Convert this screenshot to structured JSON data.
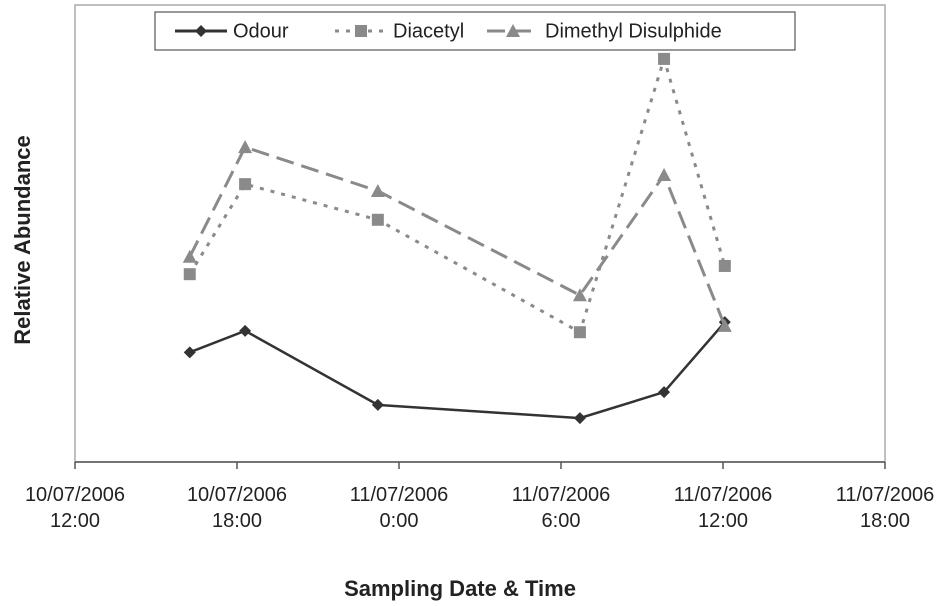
{
  "chart_data": {
    "type": "line",
    "x_label": "Sampling Date & Time",
    "y_label": "Relative Abundance",
    "x": [
      "2006-07-10T16:15",
      "2006-07-10T18:18",
      "2006-07-10T23:13",
      "2006-07-11T06:42",
      "2006-07-11T09:49",
      "2006-07-11T12:04"
    ],
    "series": [
      {
        "name": "Odour",
        "color": "#333333",
        "line_style": "solid",
        "marker": "diamond",
        "values": [
          24,
          28.7,
          12.5,
          9.6,
          15.3,
          30.6
        ]
      },
      {
        "name": "Diacetyl",
        "color": "#8a8a8a",
        "line_style": "dotted",
        "marker": "square",
        "values": [
          41.1,
          60.8,
          53,
          28.4,
          88.2,
          42.9
        ]
      },
      {
        "name": "Dimethyl Disulphide",
        "color": "#8a8a8a",
        "line_style": "dashed",
        "marker": "triangle",
        "values": [
          44.9,
          68.9,
          59.3,
          36.5,
          62.8,
          29.8
        ]
      }
    ],
    "xlim": [
      "2006-07-10T12:00",
      "2006-07-11T18:00"
    ],
    "xticks": [
      {
        "value": "2006-07-10T12:00",
        "label": "10/07/2006\n12:00"
      },
      {
        "value": "2006-07-10T18:00",
        "label": "10/07/2006\n18:00"
      },
      {
        "value": "2006-07-11T00:00",
        "label": "11/07/2006\n0:00"
      },
      {
        "value": "2006-07-11T06:00",
        "label": "11/07/2006\n6:00"
      },
      {
        "value": "2006-07-11T12:00",
        "label": "11/07/2006\n12:00"
      },
      {
        "value": "2006-07-11T18:00",
        "label": "11/07/2006\n18:00"
      }
    ],
    "ylim": [
      0,
      100
    ],
    "legend": "top"
  }
}
